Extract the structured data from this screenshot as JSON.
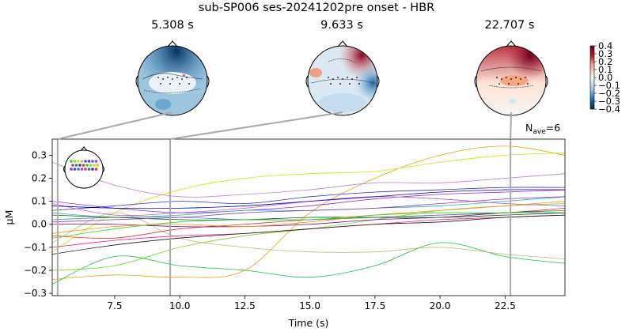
{
  "figure": {
    "title": "sub-SP006 ses-20241202pre onset - HBR",
    "nave_label": "N",
    "nave_sub": "ave",
    "nave_value": "=6"
  },
  "topomaps": [
    {
      "title": "5.308 s",
      "time": 5.308
    },
    {
      "title": "9.633 s",
      "time": 9.633
    },
    {
      "title": "22.707 s",
      "time": 22.707
    }
  ],
  "colorbar": {
    "ticks": [
      "0.4",
      "0.3",
      "0.2",
      "0.1",
      "0.0",
      "−0.1",
      "−0.2",
      "−0.3",
      "−0.4"
    ],
    "range": [
      -0.4,
      0.4
    ],
    "colors": {
      "high": "#67001f",
      "mid": "#f7f7f7",
      "low": "#053061"
    }
  },
  "chart_data": {
    "type": "line",
    "xlabel": "Time (s)",
    "ylabel": "µM",
    "xlim": [
      5.1,
      24.8
    ],
    "ylim": [
      -0.31,
      0.37
    ],
    "xticks": [
      "7.5",
      "10.0",
      "12.5",
      "15.0",
      "17.5",
      "20.0",
      "22.5"
    ],
    "xtick_values": [
      7.5,
      10.0,
      12.5,
      15.0,
      17.5,
      20.0,
      22.5
    ],
    "yticks": [
      "0.3",
      "0.2",
      "0.1",
      "0.0",
      "−0.1",
      "−0.2",
      "−0.3"
    ],
    "ytick_values": [
      0.3,
      0.2,
      0.1,
      0.0,
      -0.1,
      -0.2,
      -0.3
    ],
    "vlines": [
      5.308,
      9.633,
      22.707
    ],
    "x": [
      5.1,
      7.5,
      10.0,
      12.5,
      15.0,
      17.5,
      20.0,
      22.5,
      24.8
    ],
    "series": [
      {
        "color": "#e8a400",
        "values": [
          -0.24,
          -0.22,
          -0.23,
          -0.2,
          0.05,
          0.2,
          0.3,
          0.34,
          0.3
        ]
      },
      {
        "color": "#d4e000",
        "values": [
          -0.12,
          0.05,
          0.15,
          0.2,
          0.22,
          0.23,
          0.27,
          0.3,
          0.31
        ]
      },
      {
        "color": "#c77ad8",
        "values": [
          0.27,
          0.17,
          0.12,
          0.13,
          0.15,
          0.18,
          0.18,
          0.2,
          0.22
        ]
      },
      {
        "color": "#1bbf3a",
        "values": [
          -0.26,
          -0.14,
          -0.18,
          -0.2,
          -0.23,
          -0.18,
          -0.08,
          -0.14,
          -0.17
        ]
      },
      {
        "color": "#bdb96a",
        "values": [
          -0.08,
          0.05,
          -0.06,
          -0.1,
          -0.12,
          -0.12,
          -0.1,
          -0.13,
          -0.15
        ]
      },
      {
        "color": "#66dd22",
        "values": [
          -0.2,
          -0.18,
          -0.1,
          -0.05,
          -0.02,
          0.02,
          0.06,
          0.08,
          0.09
        ]
      },
      {
        "color": "#3030c8",
        "values": [
          0.06,
          0.08,
          0.1,
          0.09,
          0.12,
          0.14,
          0.15,
          0.16,
          0.16
        ]
      },
      {
        "color": "#8a2be2",
        "values": [
          0.1,
          0.07,
          0.05,
          0.06,
          0.08,
          0.11,
          0.13,
          0.14,
          0.15
        ]
      },
      {
        "color": "#20b2aa",
        "values": [
          0.05,
          0.03,
          0.04,
          0.06,
          0.06,
          0.07,
          0.08,
          0.1,
          0.12
        ]
      },
      {
        "color": "#ff1493",
        "values": [
          -0.1,
          -0.07,
          -0.05,
          -0.04,
          -0.02,
          0.0,
          0.02,
          0.03,
          0.04
        ]
      },
      {
        "color": "#e63030",
        "values": [
          -0.05,
          -0.06,
          -0.02,
          0.0,
          0.02,
          0.03,
          0.04,
          0.05,
          0.07
        ]
      },
      {
        "color": "#800080",
        "values": [
          0.0,
          0.0,
          -0.01,
          -0.01,
          0.0,
          0.02,
          0.03,
          0.05,
          0.06
        ]
      },
      {
        "color": "#4682b4",
        "values": [
          0.02,
          0.03,
          0.03,
          0.02,
          0.02,
          0.03,
          0.04,
          0.05,
          0.05
        ]
      },
      {
        "color": "#006400",
        "values": [
          0.04,
          0.03,
          0.02,
          0.02,
          0.03,
          0.03,
          0.03,
          0.04,
          0.05
        ]
      },
      {
        "color": "#1a1a1a",
        "values": [
          -0.13,
          -0.09,
          -0.06,
          -0.04,
          -0.02,
          0.0,
          0.01,
          0.03,
          0.04
        ]
      },
      {
        "color": "#ba55d3",
        "values": [
          0.09,
          0.04,
          0.05,
          0.07,
          0.1,
          0.12,
          0.11,
          0.09,
          0.08
        ]
      },
      {
        "color": "#ff8c00",
        "values": [
          -0.04,
          -0.01,
          0.0,
          -0.01,
          0.01,
          0.04,
          0.06,
          0.08,
          0.1
        ]
      },
      {
        "color": "#32cd32",
        "values": [
          -0.06,
          -0.02,
          0.01,
          0.02,
          0.02,
          0.04,
          0.05,
          0.05,
          0.06
        ]
      },
      {
        "color": "#0000cd",
        "values": [
          0.08,
          0.07,
          0.07,
          0.08,
          0.1,
          0.12,
          0.14,
          0.15,
          0.15
        ]
      },
      {
        "color": "#9932cc",
        "values": [
          0.01,
          0.02,
          0.03,
          0.05,
          0.06,
          0.07,
          0.09,
          0.11,
          0.12
        ]
      }
    ]
  }
}
